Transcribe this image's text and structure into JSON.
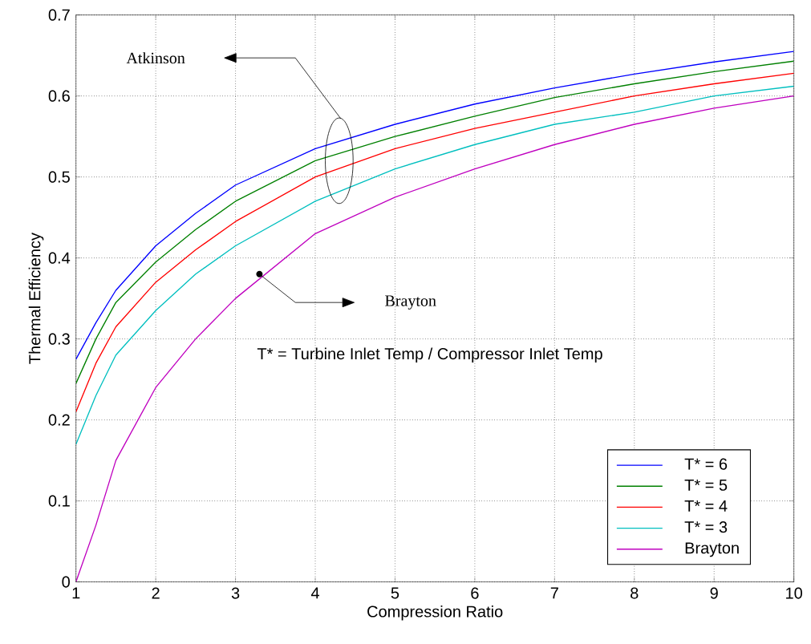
{
  "chart_data": {
    "type": "line",
    "xlabel": "Compression Ratio",
    "ylabel": "Thermal Efficiency",
    "xlim": [
      1,
      10
    ],
    "ylim": [
      0,
      0.7
    ],
    "xticks": [
      1,
      2,
      3,
      4,
      5,
      6,
      7,
      8,
      9,
      10
    ],
    "yticks": [
      0,
      0.1,
      0.2,
      0.3,
      0.4,
      0.5,
      0.6,
      0.7
    ],
    "grid": true,
    "legend": "bottom right",
    "line_style": "solid",
    "marker": "none",
    "x": [
      1,
      1.25,
      1.5,
      2,
      2.5,
      3,
      4,
      5,
      6,
      7,
      8,
      9,
      10
    ],
    "series": [
      {
        "name": "T* = 6",
        "color": "#0000ff",
        "values": [
          0.275,
          0.32,
          0.36,
          0.415,
          0.455,
          0.49,
          0.535,
          0.565,
          0.59,
          0.61,
          0.627,
          0.642,
          0.655
        ]
      },
      {
        "name": "T* = 5",
        "color": "#008000",
        "values": [
          0.245,
          0.3,
          0.345,
          0.395,
          0.435,
          0.47,
          0.52,
          0.55,
          0.575,
          0.598,
          0.615,
          0.63,
          0.643
        ]
      },
      {
        "name": "T* = 4",
        "color": "#ff0000",
        "values": [
          0.21,
          0.27,
          0.315,
          0.37,
          0.41,
          0.445,
          0.5,
          0.535,
          0.56,
          0.58,
          0.6,
          0.615,
          0.628
        ]
      },
      {
        "name": "T* = 3",
        "color": "#00bfbf",
        "values": [
          0.17,
          0.23,
          0.28,
          0.335,
          0.38,
          0.415,
          0.47,
          0.51,
          0.54,
          0.565,
          0.58,
          0.6,
          0.612
        ]
      },
      {
        "name": "Brayton",
        "color": "#bf00bf",
        "values": [
          0,
          0.07,
          0.15,
          0.24,
          0.3,
          0.35,
          0.43,
          0.475,
          0.51,
          0.54,
          0.565,
          0.585,
          0.6
        ]
      }
    ],
    "annotations": [
      "Atkinson",
      "Brayton",
      "T* = Turbine Inlet Temp / Compressor Inlet Temp"
    ]
  }
}
